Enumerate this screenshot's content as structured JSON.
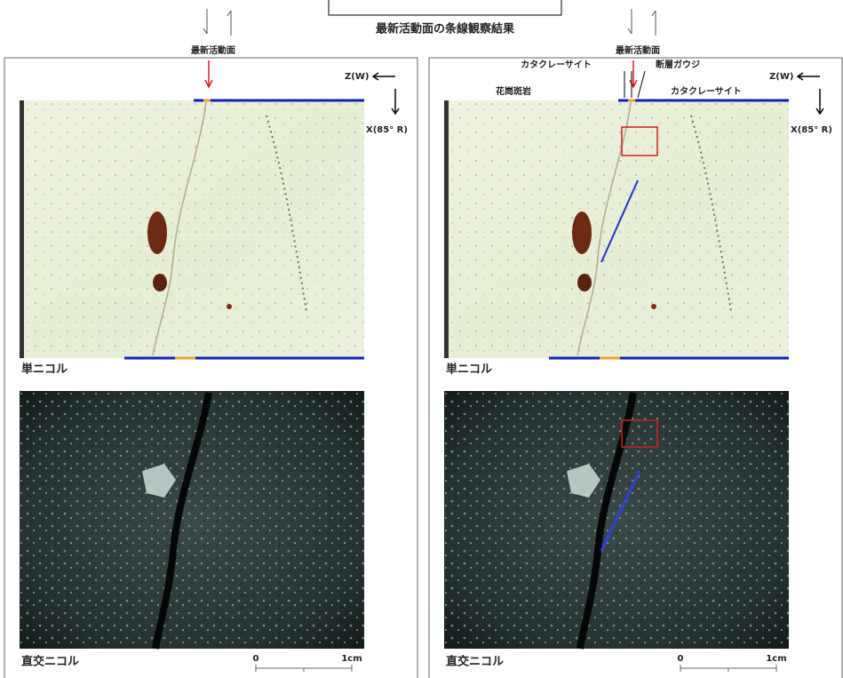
{
  "caption": "最新活動面の条線観察結果",
  "panels": [
    {
      "top_label": "最新活動面",
      "z_label": "Z(W)",
      "x_label": "X(85° R)",
      "upper_label": "単ニコル",
      "lower_label": "直交ニコル",
      "scale_start": "0",
      "scale_end": "1cm"
    },
    {
      "top_label": "最新活動面",
      "z_label": "Z(W)",
      "x_label": "X(85° R)",
      "upper_label": "単ニコル",
      "lower_label": "直交ニコル",
      "scale_start": "0",
      "scale_end": "1cm",
      "annotations": [
        "カタクレーサイト",
        "断層ガウジ",
        "花崗斑岩",
        "カタクレーサイト"
      ]
    }
  ]
}
